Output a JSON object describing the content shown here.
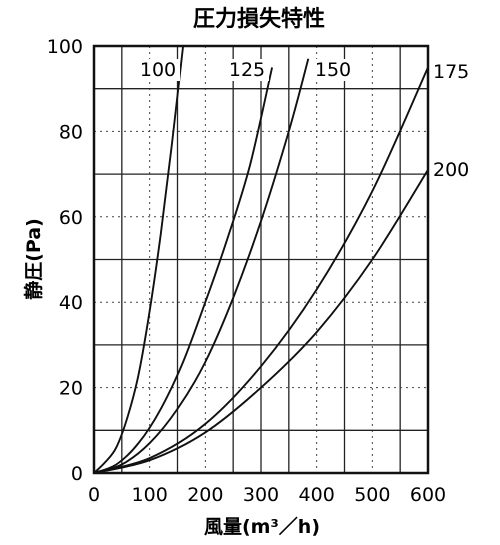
{
  "chart_data": {
    "type": "line",
    "title": "圧力損失特性",
    "xlabel": "風量(m³／h)",
    "ylabel": "静圧(Pa)",
    "xlim": [
      0,
      600
    ],
    "ylim": [
      0,
      100
    ],
    "x_ticks": [
      "0",
      "100",
      "200",
      "300",
      "400",
      "500",
      "600"
    ],
    "y_ticks": [
      "0",
      "20",
      "40",
      "60",
      "80",
      "100"
    ],
    "grid": true,
    "legend": "labels at curve ends",
    "series": [
      {
        "name": "100",
        "x": [
          0,
          20,
          40,
          60,
          80,
          100,
          120,
          140,
          160
        ],
        "y": [
          0,
          2.5,
          6,
          13,
          23,
          38,
          56,
          77,
          100
        ]
      },
      {
        "name": "125",
        "x": [
          0,
          40,
          80,
          120,
          160,
          200,
          240,
          280,
          320
        ],
        "y": [
          0,
          2,
          7,
          15,
          26,
          40,
          55,
          72,
          95
        ]
      },
      {
        "name": "150",
        "x": [
          0,
          50,
          100,
          150,
          200,
          250,
          300,
          350,
          385
        ],
        "y": [
          0,
          2,
          7,
          15,
          26,
          41,
          59,
          80,
          97
        ]
      },
      {
        "name": "175",
        "x": [
          0,
          100,
          200,
          300,
          400,
          500,
          600
        ],
        "y": [
          0,
          3.5,
          11.5,
          25,
          43,
          66,
          95
        ]
      },
      {
        "name": "200",
        "x": [
          0,
          100,
          200,
          300,
          400,
          500,
          600
        ],
        "y": [
          0,
          3,
          9.5,
          20,
          33,
          50,
          71
        ]
      }
    ]
  }
}
